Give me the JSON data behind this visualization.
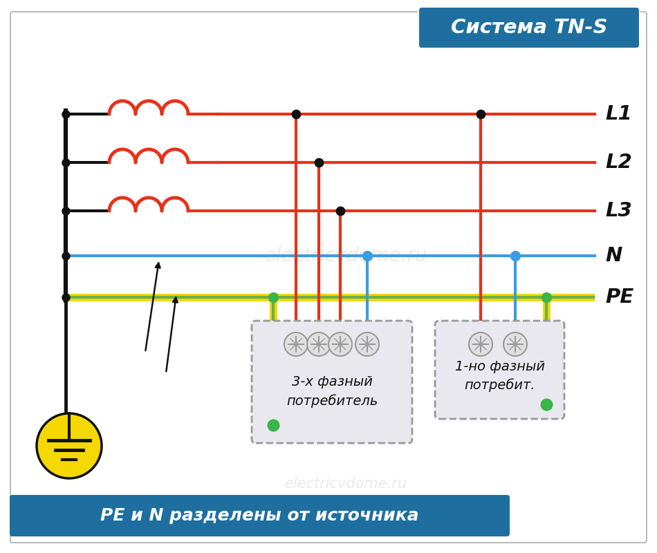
{
  "title": "Система TN-S",
  "title_bg": "#1e6fa0",
  "title_color": "white",
  "bg_color": "white",
  "subtitle": "PE и N разделены от источника",
  "subtitle_bg": "#1e6fa0",
  "subtitle_color": "white",
  "watermark": "electricvdome.ru",
  "black": "#111111",
  "red": "#e8311a",
  "blue": "#3a9de0",
  "green": "#6ab04c",
  "yellow": "#f5d800",
  "green_dot": "#3ab54a",
  "gray_box": "#e8e8ee",
  "gray_border": "#999999"
}
